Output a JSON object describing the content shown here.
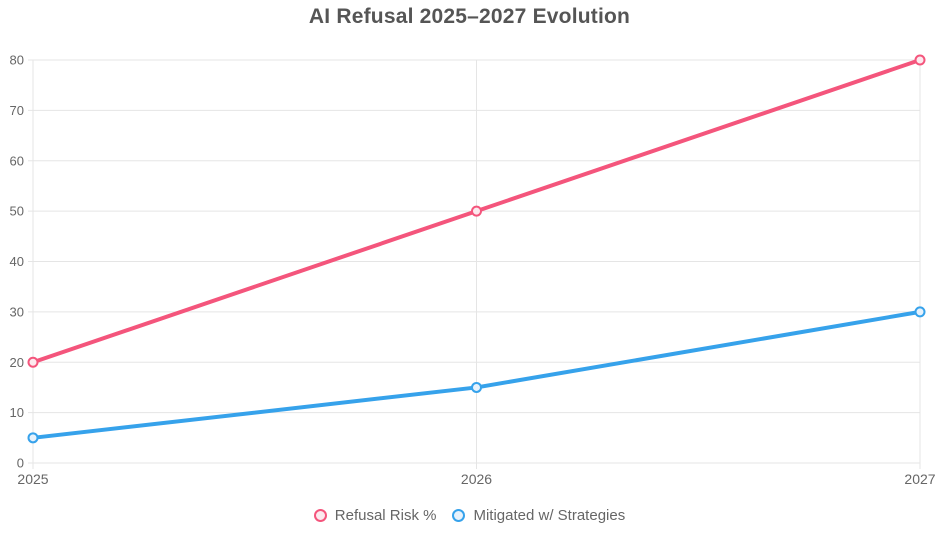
{
  "chart_data": {
    "type": "line",
    "title": "AI Refusal 2025–2027 Evolution",
    "categories": [
      "2025",
      "2026",
      "2027"
    ],
    "series": [
      {
        "name": "Refusal Risk %",
        "values": [
          20,
          50,
          80
        ],
        "color": "#F4557C",
        "point_fill": "#FCE9EE"
      },
      {
        "name": "Mitigated w/ Strategies",
        "values": [
          5,
          15,
          30
        ],
        "color": "#36A2EB",
        "point_fill": "#E7F2FC"
      }
    ],
    "xlabel": "",
    "ylabel": "",
    "ylim": [
      0,
      80
    ],
    "ytick_step": 10,
    "yticks": [
      0,
      10,
      20,
      30,
      40,
      50,
      60,
      70,
      80
    ],
    "grid": true,
    "legend_position": "bottom"
  },
  "colors": {
    "grid": "#E5E5E5",
    "tick_label": "#666666",
    "title": "#555555",
    "legend_text": "#666666",
    "background": "#FFFFFF"
  }
}
